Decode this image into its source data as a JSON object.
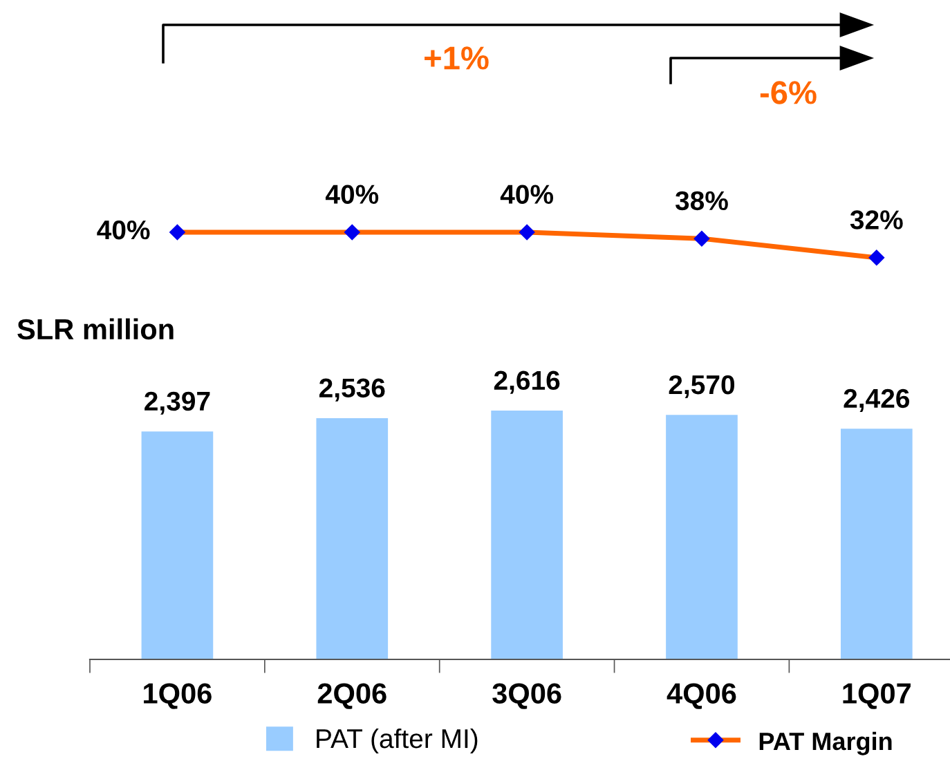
{
  "chart_data": [
    {
      "type": "line",
      "categories": [
        null,
        null,
        null,
        null,
        null
      ],
      "series": [
        {
          "name": "PAT Margin",
          "color": "#ff6600",
          "marker": "diamond",
          "values": [
            40,
            40,
            40,
            38,
            32
          ],
          "value_labels": [
            "40%",
            "40%",
            "40%",
            "38%",
            "32%"
          ]
        }
      ],
      "tick_labels": false,
      "data_labels": true,
      "legend": "bottom right",
      "annotations": [
        "+1%",
        "-6%"
      ]
    },
    {
      "type": "bar",
      "categories": [
        "1Q06",
        "2Q06",
        "3Q06",
        "4Q06",
        "1Q07"
      ],
      "series": [
        {
          "name": "PAT (after MI)",
          "color": "#99ccff",
          "values": [
            2397,
            2536,
            2616,
            2570,
            2426
          ],
          "value_labels": [
            "2,397",
            "2,536",
            "2,616",
            "2,570",
            "2,426"
          ]
        }
      ],
      "tick_labels": "x",
      "data_labels": true,
      "legend": "bottom left",
      "annotations": [
        "SLR million"
      ]
    }
  ]
}
